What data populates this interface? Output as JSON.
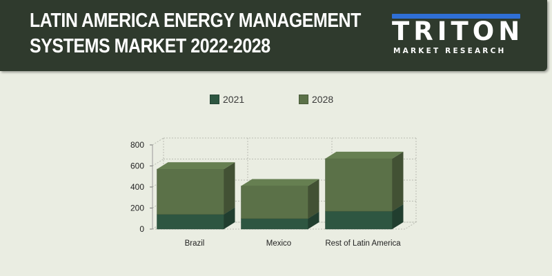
{
  "header": {
    "title_line1": "LATIN AMERICA ENERGY MANAGEMENT",
    "title_line2": "SYSTEMS MARKET 2022-2028"
  },
  "logo": {
    "word": "TRITON",
    "tagline": "MARKET RESEARCH"
  },
  "colors": {
    "header_bg": "#2f3a2d",
    "page_bg": "#eaede2",
    "logo_accent": "#2f6fd6",
    "series_2021": "#2e5641",
    "series_2028": "#5b7148"
  },
  "chart_data": {
    "type": "bar",
    "stacked": true,
    "three_d": true,
    "categories": [
      "Brazil",
      "Mexico",
      "Rest of Latin America"
    ],
    "series": [
      {
        "name": "2021",
        "values": [
          140,
          100,
          170
        ]
      },
      {
        "name": "2028",
        "values": [
          430,
          310,
          500
        ]
      }
    ],
    "yticks": [
      0,
      200,
      400,
      600,
      800
    ],
    "ylim": [
      0,
      800
    ],
    "grid": true,
    "legend_position": "top"
  }
}
